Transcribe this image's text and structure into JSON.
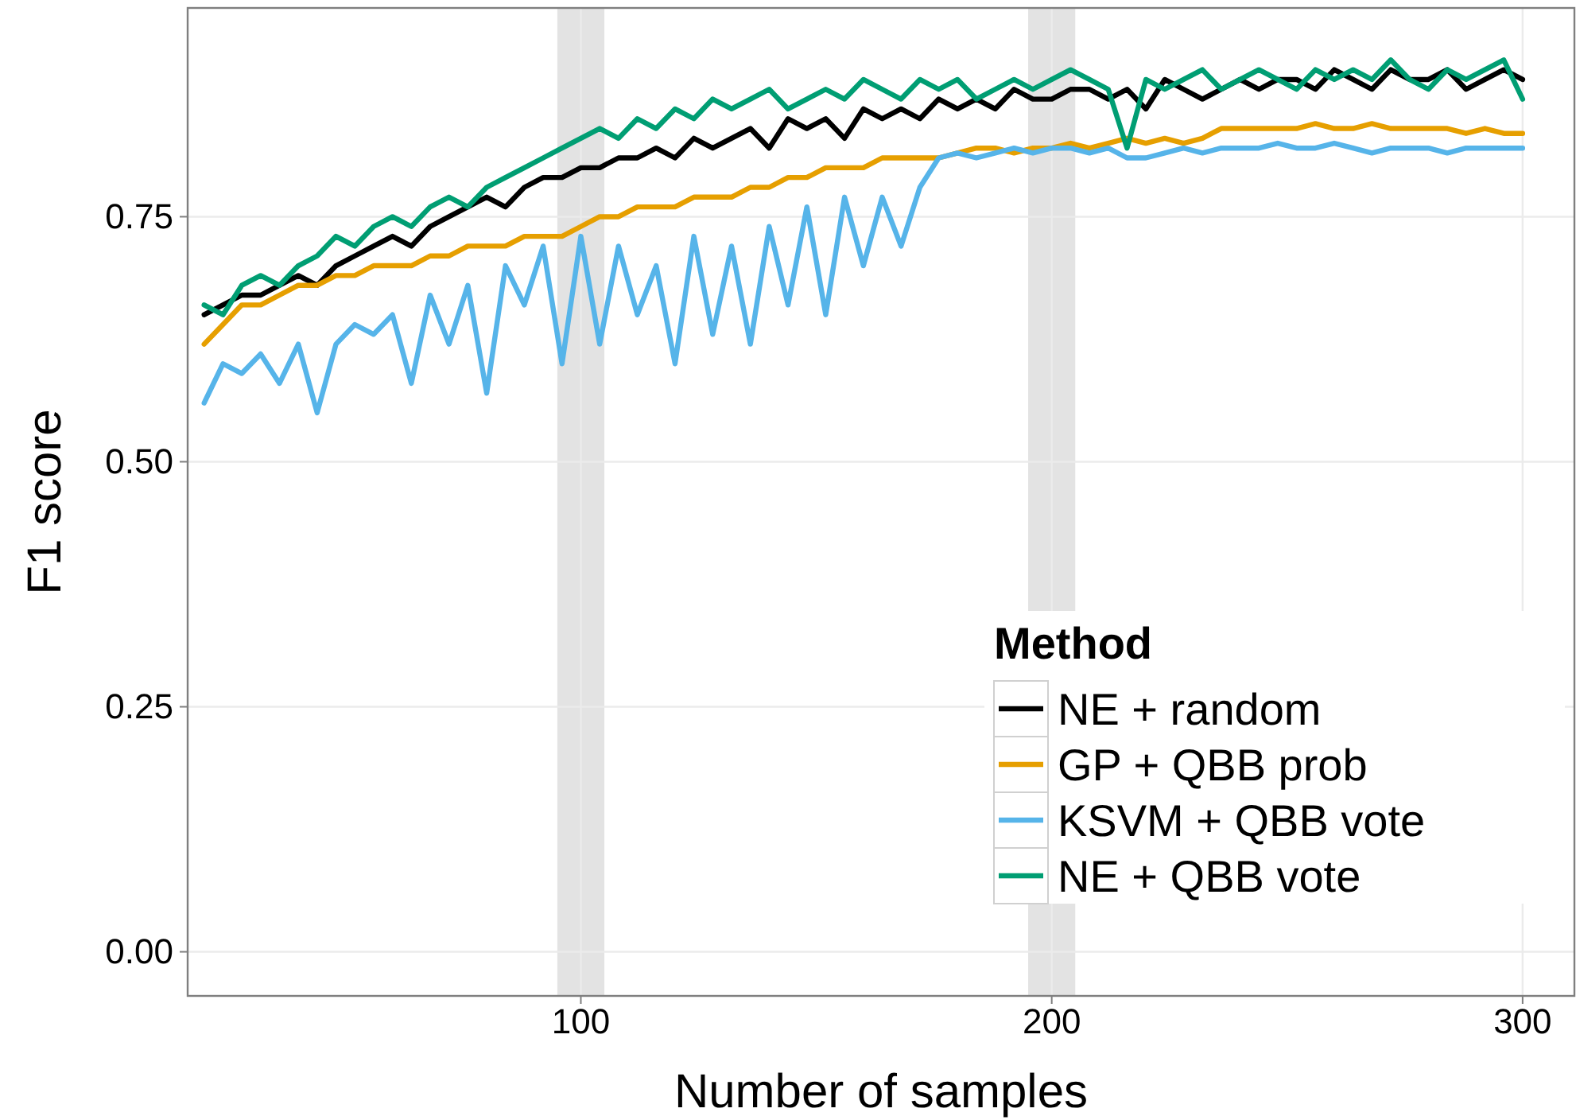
{
  "chart_data": {
    "type": "line",
    "xlabel": "Number of samples",
    "ylabel": "F1 score",
    "legend_title": "Method",
    "legend": "bottom right",
    "grid": true,
    "line_style": "solid",
    "xlim": [
      16.5,
      311
    ],
    "xticks": [
      100,
      200,
      300
    ],
    "ylim": [
      -0.045,
      0.963
    ],
    "yticks": [
      {
        "value": 0,
        "label": "0.00"
      },
      0.25,
      {
        "value": 0.5,
        "label": "0.50"
      },
      0.75
    ],
    "x": [
      20,
      24,
      28,
      32,
      36,
      40,
      44,
      48,
      52,
      56,
      60,
      64,
      68,
      72,
      76,
      80,
      84,
      88,
      92,
      96,
      100,
      104,
      108,
      112,
      116,
      120,
      124,
      128,
      132,
      136,
      140,
      144,
      148,
      152,
      156,
      160,
      164,
      168,
      172,
      176,
      180,
      184,
      188,
      192,
      196,
      200,
      204,
      208,
      212,
      216,
      220,
      224,
      228,
      232,
      236,
      240,
      244,
      248,
      252,
      256,
      260,
      264,
      268,
      272,
      276,
      280,
      284,
      288,
      292,
      296,
      300
    ],
    "bands": [
      {
        "axis": "x",
        "from": 95,
        "to": 105,
        "color": "#e3e3e3"
      },
      {
        "axis": "x",
        "from": 195,
        "to": 205,
        "color": "#e3e3e3"
      }
    ],
    "series": [
      {
        "name": "NE + random",
        "color": "#000000",
        "values": [
          0.65,
          0.66,
          0.67,
          0.67,
          0.68,
          0.69,
          0.68,
          0.7,
          0.71,
          0.72,
          0.73,
          0.72,
          0.74,
          0.75,
          0.76,
          0.77,
          0.76,
          0.78,
          0.79,
          0.79,
          0.8,
          0.8,
          0.81,
          0.81,
          0.82,
          0.81,
          0.83,
          0.82,
          0.83,
          0.84,
          0.82,
          0.85,
          0.84,
          0.85,
          0.83,
          0.86,
          0.85,
          0.86,
          0.85,
          0.87,
          0.86,
          0.87,
          0.86,
          0.88,
          0.87,
          0.87,
          0.88,
          0.88,
          0.87,
          0.88,
          0.86,
          0.89,
          0.88,
          0.87,
          0.88,
          0.89,
          0.88,
          0.89,
          0.89,
          0.88,
          0.9,
          0.89,
          0.88,
          0.9,
          0.89,
          0.89,
          0.9,
          0.88,
          0.89,
          0.9,
          0.89
        ]
      },
      {
        "name": "GP + QBB prob",
        "color": "#e69f00",
        "values": [
          0.62,
          0.64,
          0.66,
          0.66,
          0.67,
          0.68,
          0.68,
          0.69,
          0.69,
          0.7,
          0.7,
          0.7,
          0.71,
          0.71,
          0.72,
          0.72,
          0.72,
          0.73,
          0.73,
          0.73,
          0.74,
          0.75,
          0.75,
          0.76,
          0.76,
          0.76,
          0.77,
          0.77,
          0.77,
          0.78,
          0.78,
          0.79,
          0.79,
          0.8,
          0.8,
          0.8,
          0.81,
          0.81,
          0.81,
          0.81,
          0.815,
          0.82,
          0.82,
          0.815,
          0.82,
          0.82,
          0.825,
          0.82,
          0.825,
          0.83,
          0.825,
          0.83,
          0.825,
          0.83,
          0.84,
          0.84,
          0.84,
          0.84,
          0.84,
          0.845,
          0.84,
          0.84,
          0.845,
          0.84,
          0.84,
          0.84,
          0.84,
          0.835,
          0.84,
          0.835,
          0.835
        ]
      },
      {
        "name": "KSVM + QBB vote",
        "color": "#56b4e9",
        "values": [
          0.56,
          0.6,
          0.59,
          0.61,
          0.58,
          0.62,
          0.55,
          0.62,
          0.64,
          0.63,
          0.65,
          0.58,
          0.67,
          0.62,
          0.68,
          0.57,
          0.7,
          0.66,
          0.72,
          0.6,
          0.73,
          0.62,
          0.72,
          0.65,
          0.7,
          0.6,
          0.73,
          0.63,
          0.72,
          0.62,
          0.74,
          0.66,
          0.76,
          0.65,
          0.77,
          0.7,
          0.77,
          0.72,
          0.78,
          0.81,
          0.815,
          0.81,
          0.815,
          0.82,
          0.815,
          0.82,
          0.82,
          0.815,
          0.82,
          0.81,
          0.81,
          0.815,
          0.82,
          0.815,
          0.82,
          0.82,
          0.82,
          0.825,
          0.82,
          0.82,
          0.825,
          0.82,
          0.815,
          0.82,
          0.82,
          0.82,
          0.815,
          0.82,
          0.82,
          0.82,
          0.82
        ]
      },
      {
        "name": "NE + QBB vote",
        "color": "#009e73",
        "values": [
          0.66,
          0.65,
          0.68,
          0.69,
          0.68,
          0.7,
          0.71,
          0.73,
          0.72,
          0.74,
          0.75,
          0.74,
          0.76,
          0.77,
          0.76,
          0.78,
          0.79,
          0.8,
          0.81,
          0.82,
          0.83,
          0.84,
          0.83,
          0.85,
          0.84,
          0.86,
          0.85,
          0.87,
          0.86,
          0.87,
          0.88,
          0.86,
          0.87,
          0.88,
          0.87,
          0.89,
          0.88,
          0.87,
          0.89,
          0.88,
          0.89,
          0.87,
          0.88,
          0.89,
          0.88,
          0.89,
          0.9,
          0.89,
          0.88,
          0.82,
          0.89,
          0.88,
          0.89,
          0.9,
          0.88,
          0.89,
          0.9,
          0.89,
          0.88,
          0.9,
          0.89,
          0.9,
          0.89,
          0.91,
          0.89,
          0.88,
          0.9,
          0.89,
          0.9,
          0.91,
          0.87
        ]
      }
    ]
  }
}
